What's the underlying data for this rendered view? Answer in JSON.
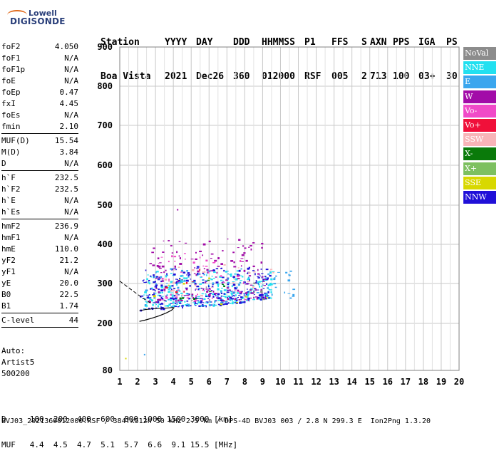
{
  "logo": {
    "line1": "Lowell",
    "line2": "DIGISONDE"
  },
  "header": {
    "labels": [
      "Station",
      "YYYY",
      "DAY",
      "DDD",
      "HHMMSS",
      "P1",
      "FFS",
      "S",
      "AXN",
      "PPS",
      "IGA",
      "PS"
    ],
    "values": [
      "Boa Vista",
      "2021",
      "Dec26",
      "360",
      "012000",
      "RSF",
      "005",
      "2",
      "713",
      "100",
      "03+",
      "30"
    ]
  },
  "params": {
    "group1": [
      {
        "k": "foF2",
        "v": "4.050"
      },
      {
        "k": "foF1",
        "v": "N/A"
      },
      {
        "k": "foF1p",
        "v": "N/A"
      },
      {
        "k": "foE",
        "v": "N/A"
      },
      {
        "k": "foEp",
        "v": "0.47"
      },
      {
        "k": "fxI",
        "v": "4.45"
      },
      {
        "k": "foEs",
        "v": "N/A"
      },
      {
        "k": "fmin",
        "v": "2.10"
      }
    ],
    "group2": [
      {
        "k": "MUF(D)",
        "v": "15.54"
      },
      {
        "k": "M(D)",
        "v": "3.84"
      },
      {
        "k": "D",
        "v": "N/A"
      }
    ],
    "group3": [
      {
        "k": "h`F",
        "v": "232.5"
      },
      {
        "k": "h`F2",
        "v": "232.5"
      },
      {
        "k": "h`E",
        "v": "N/A"
      },
      {
        "k": "h`Es",
        "v": "N/A"
      }
    ],
    "group4": [
      {
        "k": "hmF2",
        "v": "236.9"
      },
      {
        "k": "hmF1",
        "v": "N/A"
      },
      {
        "k": "hmE",
        "v": "110.0"
      },
      {
        "k": "yF2",
        "v": "21.2"
      },
      {
        "k": "yF1",
        "v": "N/A"
      },
      {
        "k": "yE",
        "v": "20.0"
      },
      {
        "k": "B0",
        "v": "22.5"
      },
      {
        "k": "B1",
        "v": "1.74"
      }
    ],
    "group5": [
      {
        "k": "C-level",
        "v": "44"
      }
    ]
  },
  "auto": {
    "line1": "Auto:",
    "line2": "Artist5",
    "line3": "500200"
  },
  "dtable": {
    "row1": "D     100  200  400  600  800 1000 1500 3000 [km]",
    "row2": "MUF   4.4  4.5  4.7  5.1  5.7  6.6  9.1 15.5 [MHz]"
  },
  "footer": "BVJ03_2021360012000.RSF / 384fx512h 50 kHz 2.5 km / DPS-4D BVJ03 003 / 2.8 N 299.3 E  Ion2Png 1.3.20",
  "legend": [
    {
      "label": "NoVal",
      "color": "#8c8c8c"
    },
    {
      "label": "NNE",
      "color": "#22e0f0"
    },
    {
      "label": "E",
      "color": "#3aa6ee"
    },
    {
      "label": "W",
      "color": "#a20ca8"
    },
    {
      "label": "Vo-",
      "color": "#f04ac8"
    },
    {
      "label": "Vo+",
      "color": "#f0103a"
    },
    {
      "label": "SSW",
      "color": "#f8b4b8"
    },
    {
      "label": "X-",
      "color": "#0a7a0a"
    },
    {
      "label": "X+",
      "color": "#7dc060"
    },
    {
      "label": "SSE",
      "color": "#d8d800"
    },
    {
      "label": "NNW",
      "color": "#2010d8"
    }
  ],
  "chart_data": {
    "type": "scatter",
    "xlim": [
      1,
      20
    ],
    "ylim": [
      80,
      900
    ],
    "xticks": [
      1,
      2,
      3,
      4,
      5,
      6,
      7,
      8,
      9,
      10,
      11,
      12,
      13,
      14,
      15,
      16,
      17,
      18,
      19,
      20
    ],
    "yticks": [
      80,
      200,
      300,
      400,
      500,
      600,
      700,
      800,
      900
    ],
    "grid": true,
    "legend_position": "right",
    "profile_curve": {
      "x": [
        2.1,
        2.4,
        2.8,
        3.2,
        3.6,
        3.9,
        4.05
      ],
      "y": [
        205,
        208,
        213,
        219,
        226,
        233,
        240
      ]
    },
    "dashed_curve": {
      "x": [
        1.0,
        1.3,
        1.6,
        1.9,
        2.2,
        2.5,
        2.8
      ],
      "y": [
        306,
        296,
        286,
        276,
        266,
        257,
        249
      ]
    },
    "trace_floor": {
      "x": [
        2.1,
        2.5,
        3,
        3.5,
        4,
        5,
        6,
        7,
        8,
        9,
        9.5
      ],
      "y": [
        232,
        235,
        237,
        238,
        240,
        243,
        245,
        250,
        256,
        262,
        265
      ]
    },
    "clusters": [
      {
        "name": "NNE",
        "xr": [
          2.3,
          9.6
        ],
        "yr": [
          245,
          335
        ],
        "n": 260
      },
      {
        "name": "NNW",
        "xr": [
          2.0,
          9.4
        ],
        "yr": [
          232,
          345
        ],
        "n": 260
      },
      {
        "name": "W",
        "xr": [
          2.6,
          9.2
        ],
        "yr": [
          255,
          415
        ],
        "n": 150
      },
      {
        "name": "E",
        "xr": [
          2.2,
          10.9
        ],
        "yr": [
          235,
          340
        ],
        "n": 90
      },
      {
        "name": "Vo-",
        "xr": [
          3.0,
          8.5
        ],
        "yr": [
          260,
          380
        ],
        "n": 45
      },
      {
        "name": "SSW",
        "xr": [
          3.5,
          9.8
        ],
        "yr": [
          270,
          350
        ],
        "n": 30
      },
      {
        "name": "SSE",
        "xr": [
          2.2,
          10.0
        ],
        "yr": [
          250,
          320
        ],
        "n": 10
      },
      {
        "name": "X-",
        "xr": [
          2.5,
          7.0
        ],
        "yr": [
          260,
          330
        ],
        "n": 8
      },
      {
        "name": "Vo+",
        "xr": [
          3.0,
          6.5
        ],
        "yr": [
          280,
          340
        ],
        "n": 6
      },
      {
        "name": "NoVal",
        "xr": [
          5.0,
          9.0
        ],
        "yr": [
          250,
          320
        ],
        "n": 6
      }
    ],
    "outliers": [
      {
        "x": 4.2,
        "y": 490,
        "series": "W"
      },
      {
        "x": 2.35,
        "y": 122,
        "series": "E"
      },
      {
        "x": 1.3,
        "y": 112,
        "series": "SSE"
      }
    ]
  }
}
